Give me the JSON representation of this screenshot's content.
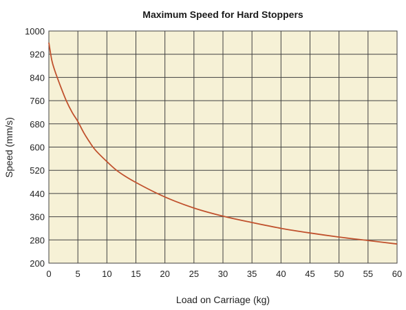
{
  "chart_data": {
    "type": "line",
    "title": "Maximum Speed for Hard Stoppers",
    "xlabel": "Load on Carriage (kg)",
    "ylabel": "Speed (mm/s)",
    "xlim": [
      0,
      60
    ],
    "ylim": [
      200,
      1000
    ],
    "xticks": [
      0,
      5,
      10,
      15,
      20,
      25,
      30,
      35,
      40,
      45,
      50,
      55,
      60
    ],
    "yticks": [
      200,
      280,
      360,
      440,
      520,
      600,
      680,
      760,
      840,
      920,
      1000
    ],
    "grid": true,
    "series": [
      {
        "x": [
          0,
          0.5,
          1,
          2,
          3,
          4,
          5,
          6,
          7,
          8,
          10,
          12,
          15,
          20,
          25,
          30,
          35,
          40,
          45,
          50,
          55,
          60
        ],
        "y": [
          960,
          900,
          865,
          810,
          760,
          720,
          688,
          650,
          618,
          590,
          550,
          515,
          478,
          428,
          390,
          362,
          340,
          320,
          304,
          290,
          278,
          266
        ]
      }
    ],
    "colors": {
      "plot_background": "#f6f1d6",
      "grid": "#404040",
      "line": "#c0512d"
    }
  }
}
